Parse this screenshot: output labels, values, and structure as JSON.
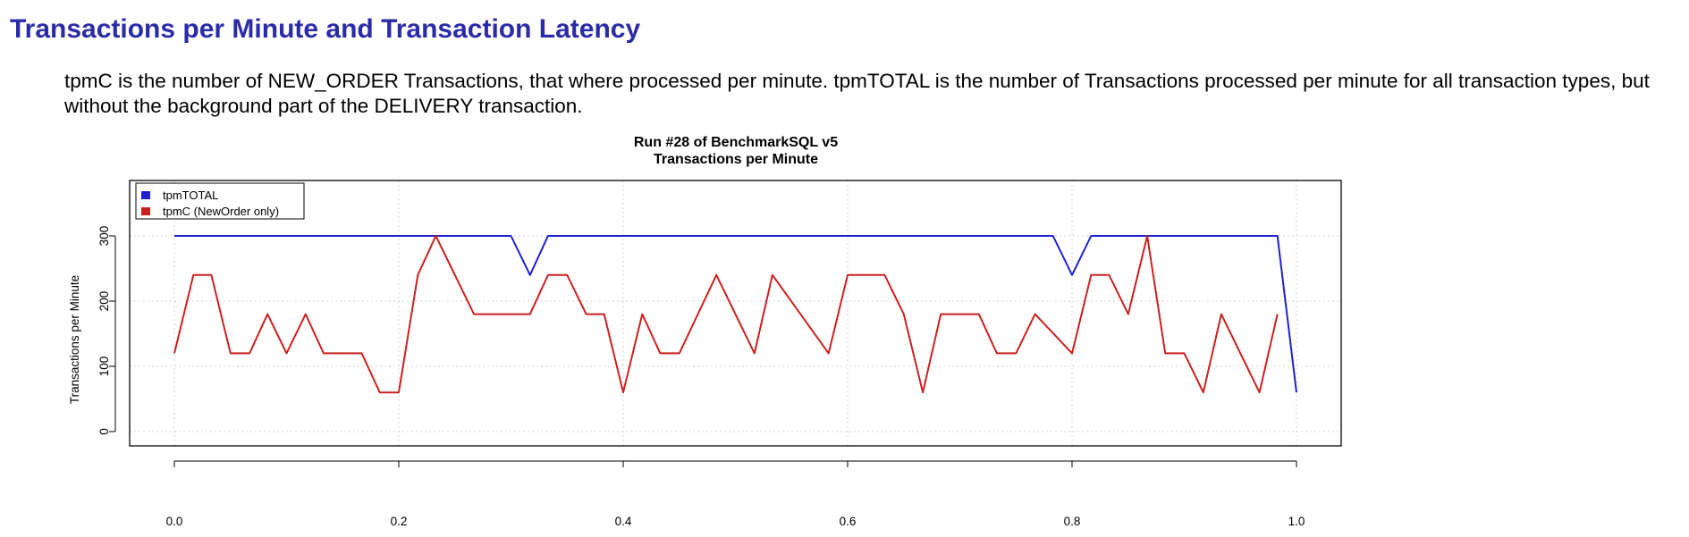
{
  "page": {
    "title": "Transactions per Minute and Transaction Latency",
    "description": "tpmC is the number of NEW_ORDER Transactions, that where processed per minute. tpmTOTAL is the number of Transactions processed per minute for all transaction types, but without the background part of the DELIVERY transaction."
  },
  "chart_data": {
    "type": "line",
    "title": "Run #28 of BenchmarkSQL v5",
    "subtitle": "Transactions per Minute",
    "xlabel": "",
    "ylabel": "Transactions per Minute",
    "xlim": [
      0,
      1.0
    ],
    "ylim": [
      0,
      375
    ],
    "x_ticks": [
      0.0,
      0.2,
      0.4,
      0.6,
      0.8,
      1.0
    ],
    "x_tick_labels": [
      "0.0",
      "0.2",
      "0.4",
      "0.6",
      "0.8",
      "1.0"
    ],
    "y_ticks": [
      0,
      100,
      200,
      300
    ],
    "y_tick_labels": [
      "0",
      "100",
      "200",
      "300"
    ],
    "grid": true,
    "legend_position": "top-left",
    "series": [
      {
        "name": "tpmTOTAL",
        "color": "#2020cc",
        "x": [
          0.0,
          0.3,
          0.317,
          0.333,
          0.783,
          0.8,
          0.817,
          0.983,
          1.0
        ],
        "y": [
          300,
          300,
          240,
          300,
          300,
          240,
          300,
          300,
          60
        ]
      },
      {
        "name": "tpmC (NewOrder only)",
        "color": "#cc2020",
        "x": [
          0.0,
          0.017,
          0.033,
          0.05,
          0.067,
          0.083,
          0.1,
          0.117,
          0.133,
          0.167,
          0.183,
          0.2,
          0.217,
          0.233,
          0.267,
          0.3,
          0.317,
          0.333,
          0.35,
          0.367,
          0.383,
          0.4,
          0.417,
          0.433,
          0.45,
          0.483,
          0.517,
          0.533,
          0.583,
          0.6,
          0.633,
          0.65,
          0.667,
          0.683,
          0.717,
          0.733,
          0.75,
          0.767,
          0.8,
          0.817,
          0.833,
          0.85,
          0.867,
          0.883,
          0.9,
          0.917,
          0.933,
          0.967,
          0.983
        ],
        "y": [
          120,
          240,
          240,
          120,
          120,
          180,
          120,
          180,
          120,
          120,
          60,
          60,
          240,
          300,
          180,
          180,
          180,
          240,
          240,
          180,
          180,
          60,
          180,
          120,
          120,
          240,
          120,
          240,
          120,
          240,
          240,
          180,
          60,
          180,
          180,
          120,
          120,
          180,
          120,
          240,
          240,
          180,
          300,
          120,
          120,
          60,
          180,
          60,
          180
        ]
      }
    ]
  }
}
